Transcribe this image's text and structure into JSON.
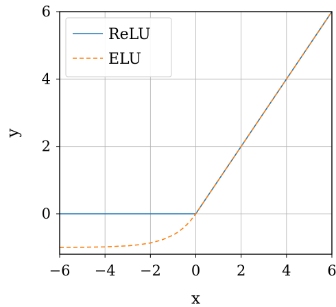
{
  "chart_data": {
    "type": "line",
    "title": "",
    "xlabel": "x",
    "ylabel": "y",
    "xlim": [
      -6,
      6
    ],
    "ylim": [
      -1.2,
      6
    ],
    "xticks": [
      -6,
      -4,
      -2,
      0,
      2,
      4,
      6
    ],
    "yticks": [
      0,
      2,
      4,
      6
    ],
    "xtick_labels": [
      "−6",
      "−4",
      "−2",
      "0",
      "2",
      "4",
      "6"
    ],
    "ytick_labels": [
      "0",
      "2",
      "4",
      "6"
    ],
    "grid": true,
    "legend": {
      "position": "upper-left"
    },
    "series": [
      {
        "name": "ReLU",
        "color": "#1f77b4",
        "style": "solid",
        "x": [
          -6,
          -4,
          -2,
          0,
          2,
          4,
          6
        ],
        "y": [
          0,
          0,
          0,
          0,
          2,
          4,
          6
        ]
      },
      {
        "name": "ELU",
        "color": "#ff7f0e",
        "style": "dashed",
        "x": [
          -6,
          -5,
          -4,
          -3,
          -2.5,
          -2,
          -1.5,
          -1,
          -0.75,
          -0.5,
          -0.25,
          0,
          2,
          4,
          6
        ],
        "y": [
          -0.998,
          -0.993,
          -0.982,
          -0.95,
          -0.918,
          -0.865,
          -0.777,
          -0.632,
          -0.528,
          -0.393,
          -0.221,
          0,
          2,
          4,
          6
        ]
      }
    ]
  }
}
